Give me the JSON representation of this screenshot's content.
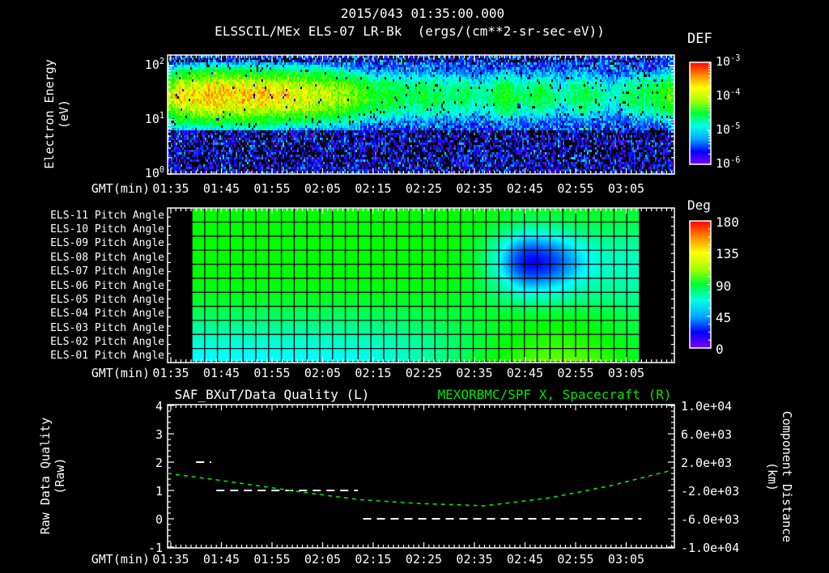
{
  "colors": {
    "background": "#000000",
    "foreground": "#ffffff",
    "green": "#00e600",
    "frame": "#ffffff"
  },
  "header": {
    "title_line1": "2015/043 01:35:00.000",
    "title_line2": "ELSSCIL/MEx ELS-07 LR-Bk  (ergs/(cm**2-sr-sec-eV))"
  },
  "time_axis": {
    "label": "GMT(min)",
    "major_ticks": [
      "01:35",
      "01:45",
      "01:55",
      "02:05",
      "02:15",
      "02:25",
      "02:35",
      "02:45",
      "02:55",
      "03:05"
    ],
    "minor_tick_interval_min": 1,
    "range": [
      "01:34",
      "03:14"
    ]
  },
  "chart_data": [
    {
      "id": "els_energy_spectrogram",
      "type": "heatmap",
      "instrument": "ELSSCIL/MEx ELS-07 LR-Bk",
      "value_units": "ergs/(cm**2-sr-sec-eV)",
      "ylabel_lines": [
        "Electron Energy",
        "(eV)"
      ],
      "yscale": "log",
      "yticks": [
        "10^0",
        "10^1",
        "10^2"
      ],
      "ylim_ev": [
        1,
        155
      ],
      "xlabel": "GMT(min)",
      "colorbar": {
        "label": "DEF",
        "ticks": [
          "10^-3",
          "10^-4",
          "10^-5",
          "10^-6"
        ],
        "log10_range": [
          -6,
          -3
        ]
      },
      "features": {
        "background_log10": -5.5,
        "low_energy_cutoff_ev": 6.6,
        "main_band": {
          "energy_ev": [
            7,
            90
          ],
          "center_ev": 30,
          "intensity_log10_timeline": [
            [
              "01:34",
              -4.0
            ],
            [
              "01:37",
              -3.62
            ],
            [
              "01:44",
              -3.55
            ],
            [
              "01:56",
              -3.6
            ],
            [
              "02:02",
              -3.75
            ],
            [
              "02:07",
              -3.85
            ],
            [
              "02:12",
              -4.15
            ],
            [
              "02:16",
              -4.55
            ],
            [
              "02:21",
              -4.9
            ],
            [
              "03:14",
              -4.9
            ]
          ],
          "enhancement_times": [
            "02:19",
            "02:25",
            "02:32",
            "02:41",
            "02:48",
            "02:57",
            "03:07",
            "03:13"
          ],
          "enhancement_log10_amp": [
            0.45,
            0.55,
            0.45,
            0.7,
            0.55,
            0.5,
            0.45,
            0.8
          ]
        }
      }
    },
    {
      "id": "pitch_angle_panel",
      "type": "heatmap",
      "rows": [
        "ELS-11 Pitch Angle",
        "ELS-10 Pitch Angle",
        "ELS-09 Pitch Angle",
        "ELS-08 Pitch Angle",
        "ELS-07 Pitch Angle",
        "ELS-06 Pitch Angle",
        "ELS-05 Pitch Angle",
        "ELS-04 Pitch Angle",
        "ELS-03 Pitch Angle",
        "ELS-02 Pitch Angle",
        "ELS-01 Pitch Angle"
      ],
      "xlabel": "GMT(min)",
      "colorbar": {
        "label": "Deg",
        "ticks": [
          180,
          135,
          90,
          45,
          0
        ],
        "range_deg": [
          0,
          180
        ]
      },
      "data_time_window": [
        "01:39",
        "03:07"
      ],
      "field": {
        "base_deg_rows_top_to_bottom": [
          100,
          100,
          100,
          100,
          100,
          98,
          94,
          86,
          76,
          67,
          60
        ],
        "blue_minimum": {
          "time": "02:46",
          "rows": [
            "ELS-08",
            "ELS-07",
            "ELS-06"
          ],
          "min_deg": 22
        },
        "late_cyan": {
          "time": "03:05",
          "deg": 70
        },
        "bottom_right_warm": {
          "time": "02:52",
          "row": "ELS-01",
          "max_deg": 120
        }
      }
    },
    {
      "id": "quality_and_position",
      "type": "line",
      "title_left": "SAF_BXuT/Data Quality (L)",
      "title_right": "MEXORBMC/SPF X, Spacecraft (R)",
      "xlabel": "GMT(min)",
      "left_axis": {
        "label_lines": [
          "Raw Data Quality",
          "(Raw)"
        ],
        "ticks": [
          4,
          3,
          2,
          1,
          0,
          -1
        ],
        "lim": [
          -1,
          4
        ]
      },
      "right_axis": {
        "label_lines": [
          "Component Distance",
          "(km)"
        ],
        "ticks": [
          "1.0e+04",
          "6.0e+03",
          "2.0e+03",
          "-2.0e+03",
          "-6.0e+03",
          "-1.0e+04"
        ],
        "lim": [
          -10000,
          10000
        ]
      },
      "series": [
        {
          "name": "SAF_BXuT/Data Quality",
          "axis": "left",
          "color": "#ffffff",
          "style": "dashed",
          "segments": [
            {
              "value": 2,
              "from": "01:40",
              "to": "01:43"
            },
            {
              "value": 1,
              "from": "01:44",
              "to": "02:12"
            },
            {
              "value": 0,
              "from": "02:13",
              "to": "03:08"
            }
          ]
        },
        {
          "name": "MEXORBMC/SPF X Spacecraft",
          "axis": "right",
          "color": "#00e600",
          "style": "dashed",
          "points": [
            {
              "t": "01:34",
              "km": 400
            },
            {
              "t": "01:43",
              "km": -400
            },
            {
              "t": "01:51",
              "km": -1200
            },
            {
              "t": "02:01",
              "km": -2240
            },
            {
              "t": "02:12",
              "km": -3280
            },
            {
              "t": "02:24",
              "km": -3840
            },
            {
              "t": "02:37",
              "km": -4160
            },
            {
              "t": "02:50",
              "km": -3040
            },
            {
              "t": "03:02",
              "km": -1320
            },
            {
              "t": "03:14",
              "km": 840
            }
          ]
        }
      ]
    }
  ],
  "colormap_stops": [
    "#7a00ff",
    "#0000ff",
    "#00aaff",
    "#00ffe6",
    "#00ff33",
    "#aaff00",
    "#ffff00",
    "#ff8800",
    "#ff0000"
  ]
}
